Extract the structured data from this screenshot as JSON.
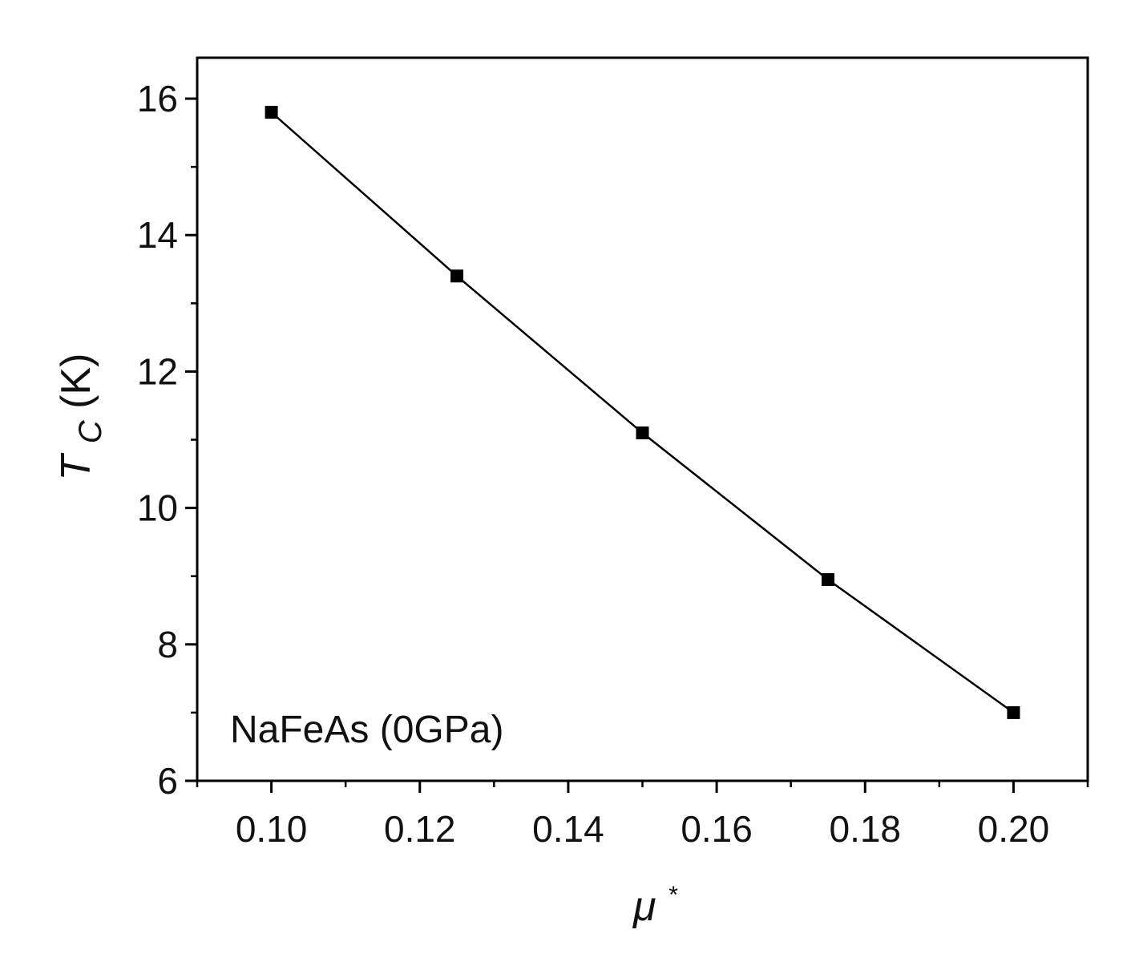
{
  "chart_data": {
    "type": "line",
    "title": "",
    "xlabel": "μ*",
    "ylabel": "Tc(K)",
    "xlabel_parts": {
      "base": "μ",
      "sup": "*"
    },
    "ylabel_parts": {
      "base": "T",
      "sub": "C",
      "unit": "(K)"
    },
    "annotation": "NaFeAs (0GPa)",
    "xlim": [
      0.09,
      0.21
    ],
    "ylim": [
      6,
      16.6
    ],
    "xticks": [
      0.1,
      0.12,
      0.14,
      0.16,
      0.18,
      0.2
    ],
    "xtick_labels": [
      "0.10",
      "0.12",
      "0.14",
      "0.16",
      "0.18",
      "0.20"
    ],
    "yticks": [
      6,
      8,
      10,
      12,
      14,
      16
    ],
    "ytick_labels": [
      "6",
      "8",
      "10",
      "12",
      "14",
      "16"
    ],
    "grid": false,
    "marker": "square",
    "series": [
      {
        "x": [
          0.1,
          0.125,
          0.15,
          0.175,
          0.2
        ],
        "y": [
          15.8,
          13.4,
          11.1,
          8.95,
          7.0
        ]
      }
    ]
  },
  "colors": {
    "line": "#000000",
    "marker": "#000000",
    "axis": "#000000",
    "background": "#ffffff"
  }
}
